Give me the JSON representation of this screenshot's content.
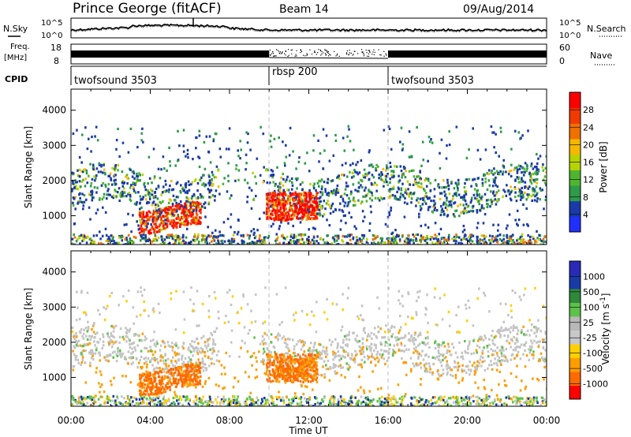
{
  "header": {
    "station": "Prince George (fitACF)",
    "beam": "Beam 14",
    "date": "09/Aug/2014"
  },
  "noise_panel": {
    "left_label": "N.Sky",
    "right_label": "N.Search",
    "top_tick": "10^5",
    "bottom_tick": "10^0"
  },
  "freq_panel": {
    "left_label_line1": "Freq.",
    "left_label_line2": "[MHz]",
    "left_top_tick": "18",
    "left_bottom_tick": "8",
    "right_label": "Nave",
    "right_top_tick": "60",
    "right_bottom_tick": "0"
  },
  "cpid_panel": {
    "label": "CPID",
    "segments": [
      {
        "name": "twofsound 3503",
        "start_hour": 0
      },
      {
        "name": "rbsp 200",
        "start_hour": 10
      },
      {
        "name": "twofsound 3503",
        "start_hour": 16
      }
    ]
  },
  "colors": {
    "power": [
      "#1f2fff",
      "#1a3aa8",
      "#2e9a4a",
      "#4fb52f",
      "#b7d400",
      "#f5b800",
      "#f07000",
      "#f03a00",
      "#ff0000"
    ],
    "velocity": [
      "#ff0000",
      "#ff6a00",
      "#ff9d00",
      "#ffd000",
      "#c8c8c8",
      "#b8b8b8",
      "#5cc24a",
      "#2e8a3a",
      "#1a3aa8",
      "#2a2ab8"
    ]
  },
  "chart_data": [
    {
      "type": "heatmap",
      "title": "Power",
      "xlabel": "",
      "ylabel": "Slant Range [km]",
      "xlim": [
        0,
        24
      ],
      "ylim": [
        180,
        4600
      ],
      "x_ticks": [
        "00:00",
        "04:00",
        "08:00",
        "12:00",
        "16:00",
        "20:00",
        "00:00"
      ],
      "y_ticks": [
        1000,
        2000,
        3000,
        4000
      ],
      "colorbar": {
        "label": "Power [dB]",
        "ticks": [
          4,
          8,
          12,
          16,
          20,
          24,
          28
        ],
        "range": [
          0,
          32
        ]
      },
      "features": [
        {
          "hours": [
            0,
            24
          ],
          "range_km": [
            1300,
            2300
          ],
          "dB": 12,
          "note": "persistent scatter band"
        },
        {
          "hours": [
            3.5,
            6.5
          ],
          "range_km": [
            700,
            1300
          ],
          "dB": 24
        },
        {
          "hours": [
            9.8,
            12.4
          ],
          "range_km": [
            900,
            1700
          ],
          "dB": 28
        },
        {
          "hours": [
            7,
            9
          ],
          "range_km": [
            2400,
            3300
          ],
          "dB": 12
        }
      ]
    },
    {
      "type": "heatmap",
      "title": "Velocity",
      "xlabel": "Time UT",
      "ylabel": "Slant Range [km]",
      "xlim": [
        0,
        24
      ],
      "ylim": [
        180,
        4600
      ],
      "x_ticks": [
        "00:00",
        "04:00",
        "08:00",
        "12:00",
        "16:00",
        "20:00",
        "00:00"
      ],
      "y_ticks": [
        1000,
        2000,
        3000,
        4000
      ],
      "colorbar": {
        "label": "Velocity [m s^-1]",
        "ticks": [
          "1000",
          "500",
          "100",
          "25",
          "-25",
          "-100",
          "-500",
          "-1000"
        ]
      },
      "features": [
        {
          "hours": [
            0,
            24
          ],
          "range_km": [
            1300,
            2300
          ],
          "velocity_ms": 0,
          "note": "ground scatter"
        },
        {
          "hours": [
            3.5,
            6.5
          ],
          "range_km": [
            700,
            1300
          ],
          "velocity_ms": -300
        },
        {
          "hours": [
            9.8,
            12.4
          ],
          "range_km": [
            900,
            1700
          ],
          "velocity_ms": -300
        }
      ]
    }
  ]
}
